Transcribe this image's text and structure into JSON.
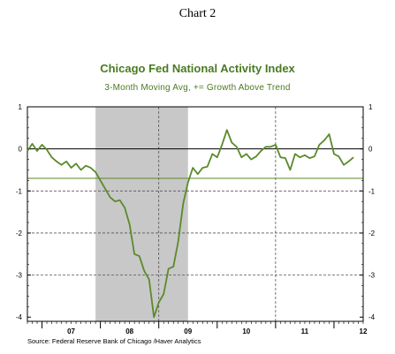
{
  "document": {
    "title": "Chart 2",
    "source": "Source:  Federal Reserve Bank of Chicago /Haver Analytics"
  },
  "chart_data": {
    "type": "line",
    "title": "Chicago Fed National Activity Index",
    "subtitle": "3-Month Moving Avg, += Growth Above Trend",
    "x_tick_labels": [
      "07",
      "08",
      "09",
      "10",
      "11",
      "12"
    ],
    "y_ticks": [
      1,
      0,
      -1,
      -2,
      -3,
      -4
    ],
    "ylim": [
      -4.1,
      1.0
    ],
    "x_start": 2006.75,
    "x_end": 2012.5,
    "recession": {
      "start": 2007.917,
      "end": 2009.5
    },
    "reference_line": -0.7,
    "grid": {
      "vertical_dashed_years": [
        2009,
        2011
      ],
      "horizontal_dashed": [
        -1,
        -2,
        -3
      ]
    },
    "colors": {
      "series": "#5a8a2a",
      "title": "#4a7a22",
      "recession": "#c8c8c8",
      "reference": "#5a8a2a"
    },
    "series": [
      {
        "x": [
          2006.75,
          2006.833,
          2006.917,
          2007.0,
          2007.083,
          2007.167,
          2007.25,
          2007.333,
          2007.417,
          2007.5,
          2007.583,
          2007.667,
          2007.75,
          2007.833,
          2007.917,
          2008.0,
          2008.083,
          2008.167,
          2008.25,
          2008.333,
          2008.417,
          2008.5,
          2008.583,
          2008.667,
          2008.75,
          2008.833,
          2008.917,
          2009.0,
          2009.083,
          2009.167,
          2009.25,
          2009.333,
          2009.417,
          2009.5,
          2009.583,
          2009.667,
          2009.75,
          2009.833,
          2009.917,
          2010.0,
          2010.083,
          2010.167,
          2010.25,
          2010.333,
          2010.417,
          2010.5,
          2010.583,
          2010.667,
          2010.75,
          2010.833,
          2010.917,
          2011.0,
          2011.083,
          2011.167,
          2011.25,
          2011.333,
          2011.417,
          2011.5,
          2011.583,
          2011.667,
          2011.75,
          2011.833,
          2011.917,
          2012.0,
          2012.083,
          2012.167,
          2012.25,
          2012.333
        ],
        "y": [
          -0.05,
          0.12,
          -0.05,
          0.1,
          -0.02,
          -0.2,
          -0.3,
          -0.38,
          -0.3,
          -0.45,
          -0.35,
          -0.5,
          -0.4,
          -0.45,
          -0.55,
          -0.75,
          -0.95,
          -1.15,
          -1.25,
          -1.22,
          -1.4,
          -1.8,
          -2.5,
          -2.55,
          -2.9,
          -3.1,
          -4.0,
          -3.65,
          -3.45,
          -2.85,
          -2.8,
          -2.2,
          -1.3,
          -0.8,
          -0.45,
          -0.6,
          -0.45,
          -0.42,
          -0.12,
          -0.2,
          0.1,
          0.45,
          0.15,
          0.05,
          -0.2,
          -0.12,
          -0.25,
          -0.18,
          -0.05,
          0.05,
          0.05,
          0.1,
          -0.2,
          -0.22,
          -0.5,
          -0.12,
          -0.2,
          -0.15,
          -0.22,
          -0.18,
          0.1,
          0.2,
          0.35,
          -0.12,
          -0.18,
          -0.38,
          -0.3,
          -0.2
        ]
      }
    ]
  }
}
